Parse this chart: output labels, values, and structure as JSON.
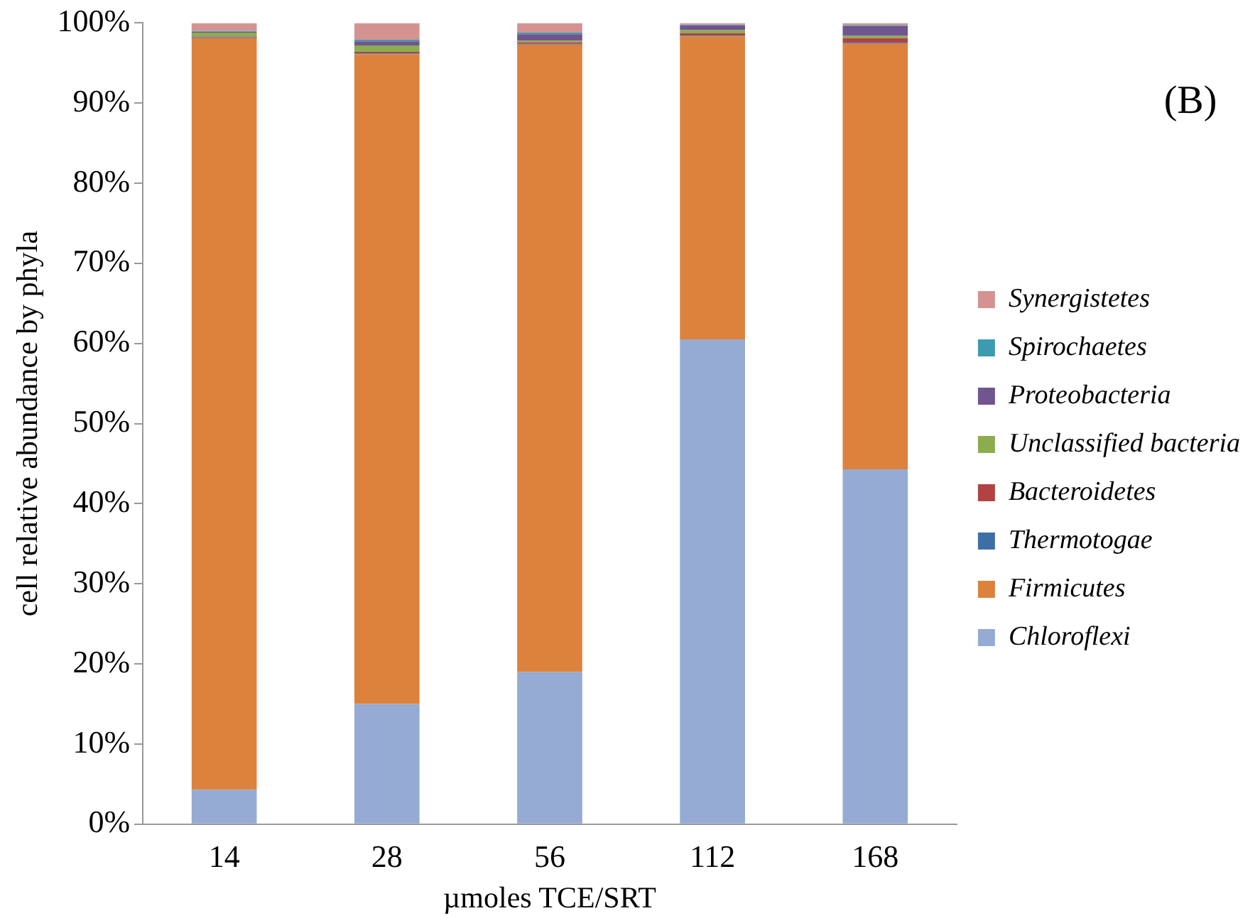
{
  "chart_data": {
    "type": "bar",
    "stacked": true,
    "xlabel": "µmoles TCE/SRT",
    "ylabel": "cell relative abundance by phyla",
    "annotations": [
      "(B)"
    ],
    "categories": [
      "14",
      "28",
      "56",
      "112",
      "168"
    ],
    "series": [
      {
        "name": "Chloroflexi",
        "color": "#95abd3",
        "values": [
          4.3,
          15,
          19,
          60.5,
          44.3
        ]
      },
      {
        "name": "Firmicutes",
        "color": "#dc823d",
        "values": [
          93.8,
          81.1,
          78.3,
          37.8,
          53.1
        ]
      },
      {
        "name": "Thermotogae",
        "color": "#3f6ea5",
        "values": [
          0.1,
          0.1,
          0.1,
          0.1,
          0.1
        ]
      },
      {
        "name": "Bacteroidetes",
        "color": "#b04442",
        "values": [
          0.1,
          0.2,
          0.2,
          0.3,
          0.6
        ]
      },
      {
        "name": "Unclassified bacteria",
        "color": "#8cac4e",
        "values": [
          0.5,
          0.8,
          0.2,
          0.4,
          0.3
        ]
      },
      {
        "name": "Proteobacteria",
        "color": "#70558f",
        "values": [
          0.1,
          0.5,
          0.8,
          0.6,
          1.2
        ]
      },
      {
        "name": "Spirochaetes",
        "color": "#3d9bb0",
        "values": [
          0.1,
          0.2,
          0.2,
          0.1,
          0.1
        ]
      },
      {
        "name": "Synergistetes",
        "color": "#d49391",
        "values": [
          1.0,
          2.1,
          1.2,
          0.2,
          0.3
        ]
      }
    ],
    "ylim": [
      0,
      100
    ],
    "yticks": [
      {
        "value": 0,
        "label": "0%"
      },
      {
        "value": 10,
        "label": "10%"
      },
      {
        "value": 20,
        "label": "20%"
      },
      {
        "value": 30,
        "label": "30%"
      },
      {
        "value": 40,
        "label": "40%"
      },
      {
        "value": 50,
        "label": "50%"
      },
      {
        "value": 60,
        "label": "60%"
      },
      {
        "value": 70,
        "label": "70%"
      },
      {
        "value": 80,
        "label": "80%"
      },
      {
        "value": 90,
        "label": "90%"
      },
      {
        "value": 100,
        "label": "100%"
      }
    ],
    "grid": false,
    "legend": "right"
  }
}
